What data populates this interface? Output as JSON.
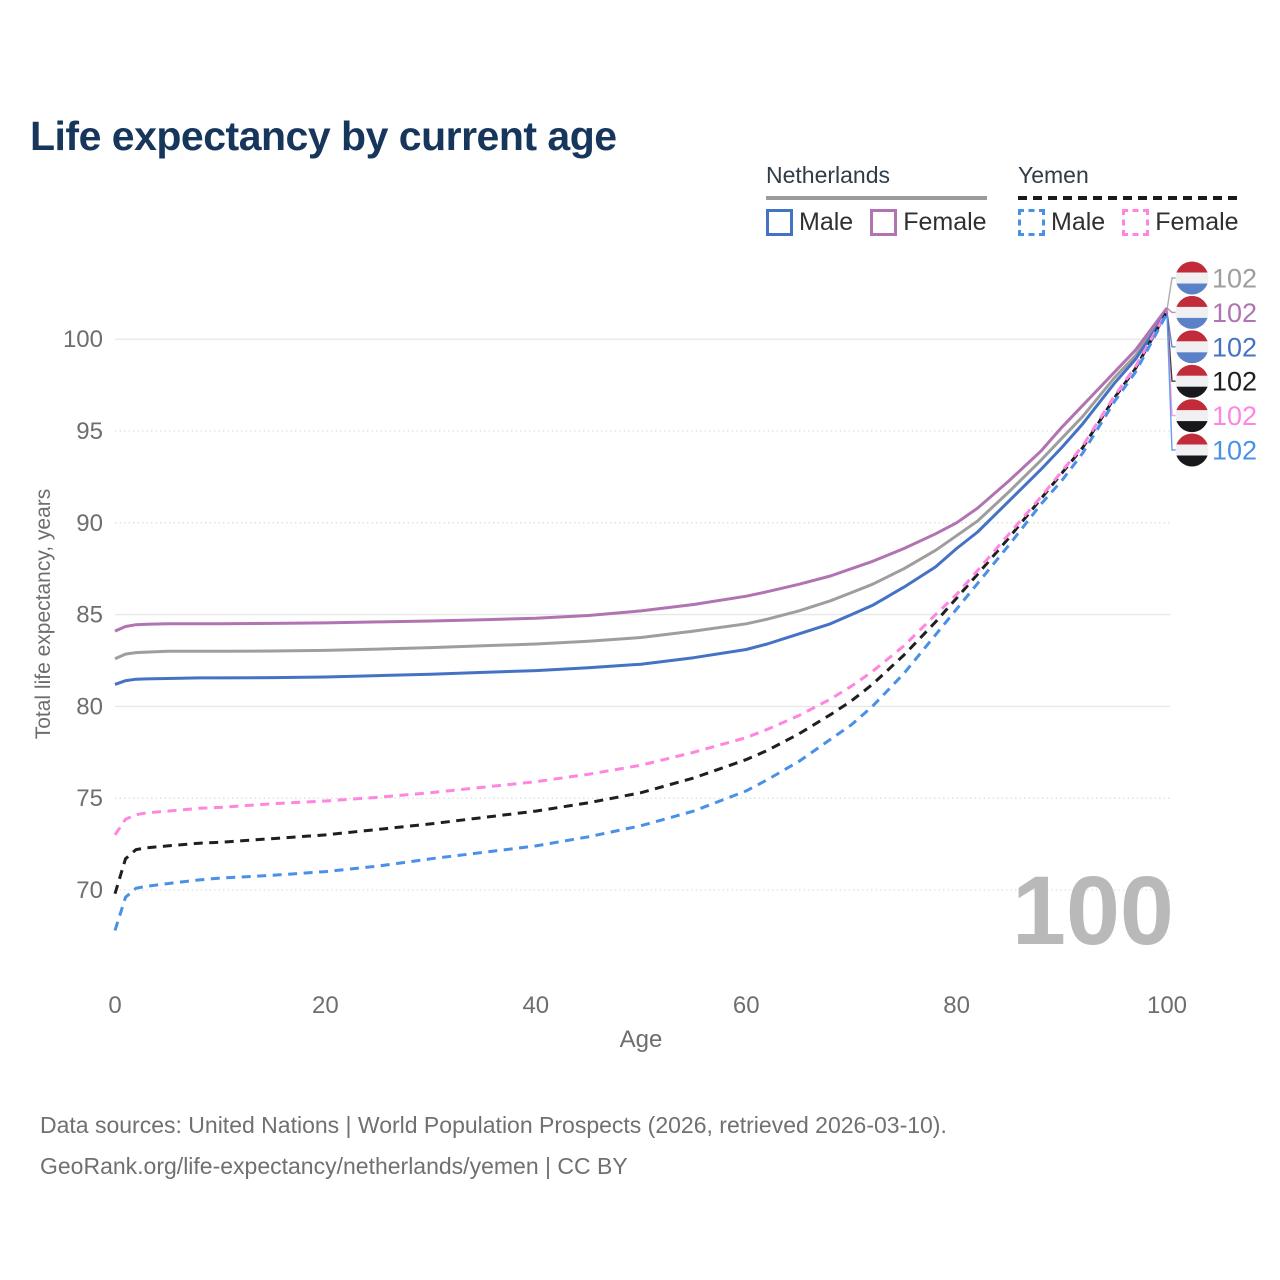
{
  "title": "Life expectancy by current age",
  "watermark": "100",
  "legend": {
    "groups": [
      {
        "label": "Netherlands",
        "line_style": "solid",
        "underline_color": "#9b9b9b",
        "items": [
          {
            "label": "Male",
            "color": "#4472c4"
          },
          {
            "label": "Female",
            "color": "#b173b1"
          }
        ]
      },
      {
        "label": "Yemen",
        "line_style": "dashed",
        "underline_color": "#1a1a1a",
        "items": [
          {
            "label": "Male",
            "color": "#4a90e8"
          },
          {
            "label": "Female",
            "color": "#ff85e0"
          }
        ]
      }
    ]
  },
  "footer": {
    "line1": "Data sources: United Nations | World Population Prospects (2026, retrieved 2026-03-10).",
    "line2": "GeoRank.org/life-expectancy/netherlands/yemen | CC BY"
  },
  "chart_data": {
    "type": "line",
    "title": "Life expectancy by current age",
    "xlabel": "Age",
    "ylabel": "Total life expectancy, years",
    "xlim": [
      0,
      100
    ],
    "ylim": [
      66.5,
      103
    ],
    "xticks": [
      0,
      20,
      40,
      60,
      80,
      100
    ],
    "yticks": [
      70,
      75,
      80,
      85,
      90,
      95,
      100
    ],
    "grid": "horizontal",
    "solid_gridlines": [
      80,
      85,
      100
    ],
    "dotted_gridlines": [
      70,
      75,
      90,
      95
    ],
    "legend_position": "top-right",
    "flags": {
      "netherlands": [
        "#c22c3a",
        "#f0f0f2",
        "#5b82c9"
      ],
      "yemen": [
        "#c22c3a",
        "#f0f0f2",
        "#17171c"
      ]
    },
    "x": [
      0,
      1,
      2,
      3,
      5,
      8,
      10,
      15,
      20,
      25,
      30,
      35,
      40,
      45,
      50,
      55,
      60,
      62,
      65,
      68,
      70,
      72,
      75,
      78,
      80,
      82,
      85,
      88,
      90,
      92,
      95,
      97,
      100
    ],
    "series": [
      {
        "name": "Netherlands both sexes",
        "flag": "netherlands",
        "color": "#9e9e9e",
        "dashed": false,
        "end_label": "102",
        "values": [
          82.6,
          82.85,
          82.93,
          82.96,
          83.0,
          83.0,
          83.0,
          83.02,
          83.05,
          83.12,
          83.2,
          83.3,
          83.4,
          83.55,
          83.75,
          84.1,
          84.5,
          84.75,
          85.2,
          85.75,
          86.2,
          86.65,
          87.5,
          88.5,
          89.3,
          90.1,
          91.7,
          93.4,
          94.6,
          95.8,
          97.9,
          99.1,
          101.6
        ]
      },
      {
        "name": "Netherlands female",
        "flag": "netherlands",
        "color": "#b173b1",
        "dashed": false,
        "end_label": "102",
        "values": [
          84.1,
          84.35,
          84.45,
          84.47,
          84.5,
          84.5,
          84.5,
          84.52,
          84.55,
          84.6,
          84.65,
          84.72,
          84.8,
          84.95,
          85.2,
          85.55,
          86.0,
          86.25,
          86.65,
          87.1,
          87.5,
          87.9,
          88.6,
          89.4,
          90.0,
          90.8,
          92.3,
          93.9,
          95.2,
          96.4,
          98.2,
          99.4,
          101.7
        ]
      },
      {
        "name": "Netherlands male",
        "flag": "netherlands",
        "color": "#4472c4",
        "dashed": false,
        "end_label": "102",
        "values": [
          81.2,
          81.4,
          81.48,
          81.5,
          81.52,
          81.55,
          81.55,
          81.57,
          81.6,
          81.68,
          81.75,
          81.85,
          81.95,
          82.1,
          82.3,
          82.65,
          83.1,
          83.4,
          83.95,
          84.5,
          85.0,
          85.5,
          86.5,
          87.6,
          88.6,
          89.5,
          91.2,
          92.9,
          94.1,
          95.4,
          97.6,
          98.9,
          101.5
        ]
      },
      {
        "name": "Yemen both sexes",
        "flag": "yemen",
        "color": "#1f1f1f",
        "dashed": true,
        "end_label": "102",
        "values": [
          69.8,
          71.7,
          72.2,
          72.3,
          72.4,
          72.55,
          72.6,
          72.8,
          73.0,
          73.3,
          73.6,
          73.95,
          74.3,
          74.75,
          75.3,
          76.1,
          77.1,
          77.6,
          78.5,
          79.55,
          80.3,
          81.2,
          82.8,
          84.6,
          85.9,
          87.2,
          89.2,
          91.3,
          92.7,
          94.1,
          96.8,
          98.4,
          101.5
        ]
      },
      {
        "name": "Yemen female",
        "flag": "yemen",
        "color": "#ff85e0",
        "dashed": true,
        "end_label": "102",
        "values": [
          73.0,
          73.85,
          74.1,
          74.2,
          74.3,
          74.45,
          74.5,
          74.7,
          74.85,
          75.05,
          75.3,
          75.6,
          75.9,
          76.3,
          76.8,
          77.5,
          78.3,
          78.75,
          79.5,
          80.4,
          81.1,
          81.9,
          83.3,
          85.0,
          86.1,
          87.4,
          89.4,
          91.4,
          92.8,
          94.2,
          96.9,
          98.5,
          101.5
        ]
      },
      {
        "name": "Yemen male",
        "flag": "yemen",
        "color": "#4a90e8",
        "dashed": true,
        "end_label": "102",
        "values": [
          67.8,
          69.6,
          70.1,
          70.2,
          70.35,
          70.55,
          70.65,
          70.8,
          71.0,
          71.3,
          71.7,
          72.05,
          72.4,
          72.9,
          73.5,
          74.3,
          75.4,
          76.0,
          77.0,
          78.2,
          79.0,
          80.0,
          81.8,
          83.9,
          85.3,
          86.7,
          88.8,
          91.0,
          92.3,
          93.8,
          96.6,
          98.2,
          101.4
        ]
      }
    ]
  }
}
